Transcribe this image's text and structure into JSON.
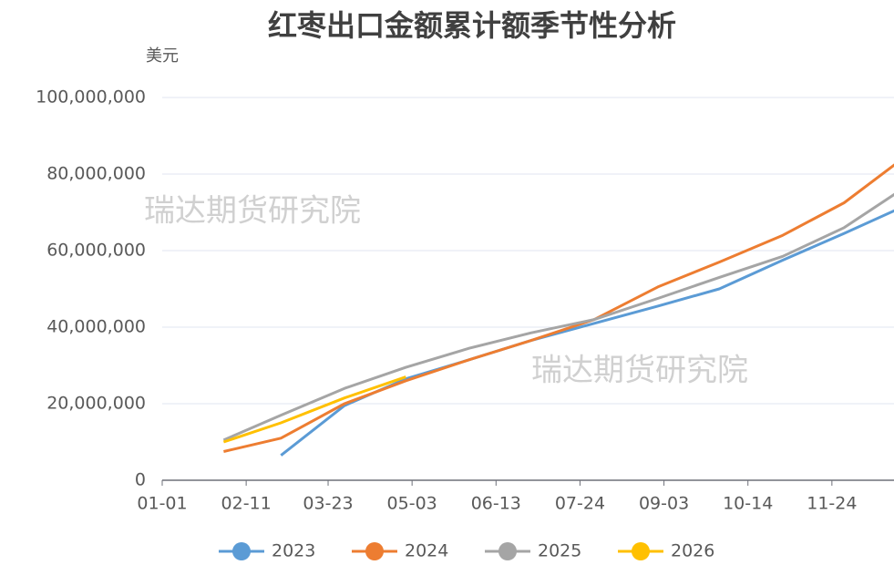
{
  "chart_data": {
    "type": "line",
    "title": "红枣出口金额累计额季节性分析",
    "y_label": "美元",
    "annotations": [
      "瑞达期货研究院",
      "瑞达期货研究院"
    ],
    "x": [
      "01-31",
      "02-28",
      "03-31",
      "04-30",
      "05-31",
      "06-30",
      "07-31",
      "08-31",
      "09-30",
      "10-31",
      "11-30",
      "12-31"
    ],
    "xlim": [
      "01-01",
      "12-31"
    ],
    "xticks": [
      "01-01",
      "02-11",
      "03-23",
      "05-03",
      "06-13",
      "07-24",
      "09-03",
      "10-14",
      "11-24"
    ],
    "ylim": [
      0,
      100000000
    ],
    "yticks": [
      0,
      {
        "value": 20000000,
        "label": "20,000,000"
      },
      {
        "value": 40000000,
        "label": "40,000,000"
      },
      {
        "value": 60000000,
        "label": "60,000,000"
      },
      {
        "value": 80000000,
        "label": "80,000,000"
      },
      {
        "value": 100000000,
        "label": "100,000,000"
      }
    ],
    "grid": true,
    "legend": "bottom",
    "series": [
      {
        "name": "2023",
        "color": "#5b9bd5",
        "values": [
          null,
          6500000,
          19500000,
          26500000,
          31500000,
          36500000,
          41000000,
          45500000,
          50000000,
          57500000,
          64500000,
          72000000
        ]
      },
      {
        "name": "2024",
        "color": "#ed7d31",
        "values": [
          7500000,
          11000000,
          20000000,
          26000000,
          31500000,
          36500000,
          42000000,
          50500000,
          57000000,
          64000000,
          72500000,
          85000000
        ]
      },
      {
        "name": "2025",
        "color": "#a5a5a5",
        "values": [
          10500000,
          17000000,
          24000000,
          29500000,
          34500000,
          38500000,
          42000000,
          47500000,
          53000000,
          58500000,
          66000000,
          77000000
        ]
      },
      {
        "name": "2026",
        "color": "#ffc000",
        "values": [
          10000000,
          15000000,
          21500000,
          27000000,
          null,
          null,
          null,
          null,
          null,
          null,
          null,
          null
        ]
      }
    ]
  }
}
